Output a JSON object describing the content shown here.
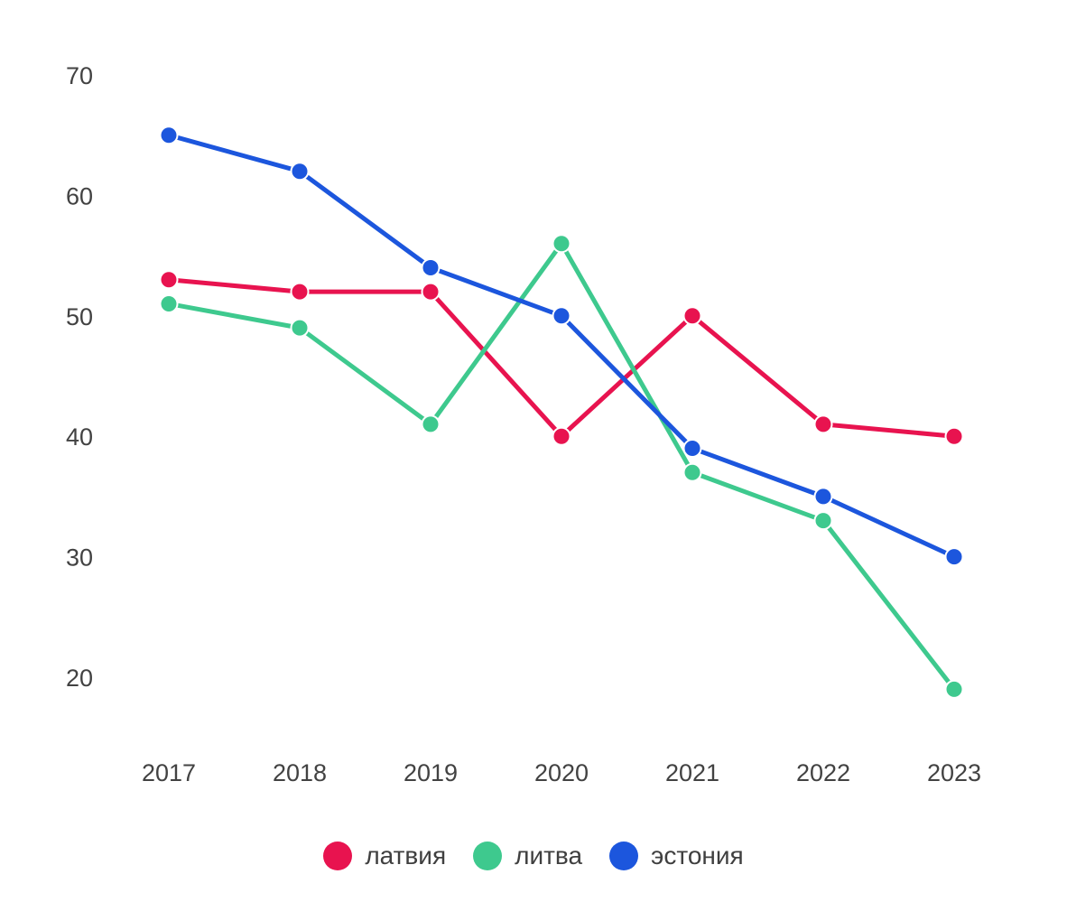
{
  "chart_data": {
    "type": "line",
    "title": "",
    "xlabel": "",
    "ylabel": "",
    "x": [
      "2017",
      "2018",
      "2019",
      "2020",
      "2021",
      "2022",
      "2023"
    ],
    "series": [
      {
        "name": "латвия",
        "color": "#e8134f",
        "values": [
          53,
          52,
          52,
          40,
          50,
          41,
          40
        ]
      },
      {
        "name": "литва",
        "color": "#3ec98e",
        "values": [
          51,
          49,
          41,
          56,
          37,
          33,
          19
        ]
      },
      {
        "name": "эстония",
        "color": "#1c56dd",
        "values": [
          65,
          62,
          54,
          50,
          39,
          35,
          30
        ]
      }
    ],
    "yticks": [
      70,
      60,
      50,
      40,
      30,
      20
    ],
    "ylim": [
      15,
      72
    ],
    "grid": false,
    "legend_position": "bottom",
    "background_color": "#ffffff",
    "text_color": "#424242"
  }
}
